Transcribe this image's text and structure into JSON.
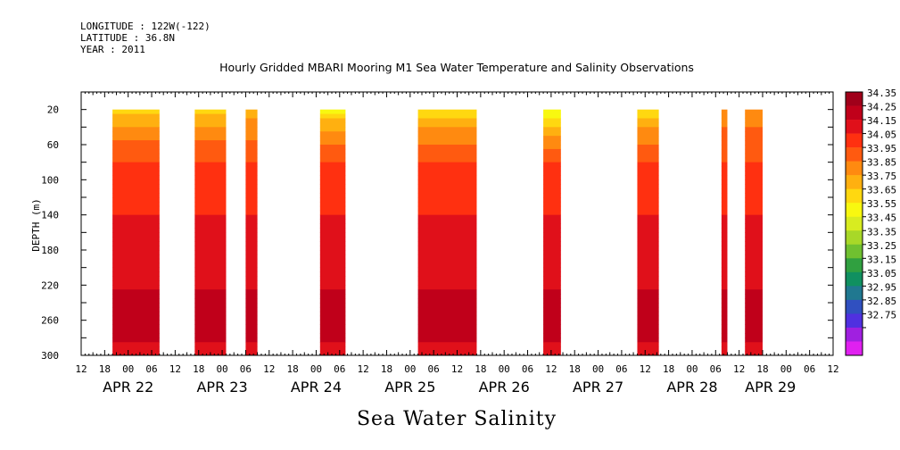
{
  "header": {
    "longitude": "LONGITUDE : 122W(-122)",
    "latitude": "LATITUDE : 36.8N",
    "year": "YEAR : 2011"
  },
  "chart_data": {
    "type": "heatmap",
    "title": "Hourly Gridded MBARI Mooring M1 Sea Water Temperature and Salinity Observations",
    "xlabel": "Sea Water Salinity",
    "ylabel": "DEPTH (m)",
    "x_hour_ticks": [
      "12",
      "18",
      "00",
      "06",
      "12",
      "18",
      "00",
      "06",
      "12",
      "18",
      "00",
      "06",
      "12",
      "18",
      "00",
      "06",
      "12",
      "18",
      "00",
      "06",
      "12",
      "18",
      "00",
      "06",
      "12",
      "18",
      "00",
      "06",
      "12",
      "18",
      "00",
      "06",
      "12"
    ],
    "x_day_labels": [
      {
        "label": "APR 22",
        "hours_from_start": 12
      },
      {
        "label": "APR 23",
        "hours_from_start": 36
      },
      {
        "label": "APR 24",
        "hours_from_start": 60
      },
      {
        "label": "APR 25",
        "hours_from_start": 84
      },
      {
        "label": "APR 26",
        "hours_from_start": 108
      },
      {
        "label": "APR 27",
        "hours_from_start": 132
      },
      {
        "label": "APR 28",
        "hours_from_start": 156
      },
      {
        "label": "APR 29",
        "hours_from_start": 176
      }
    ],
    "xlim_hours": [
      0,
      192
    ],
    "y_ticks": [
      20,
      60,
      100,
      140,
      180,
      220,
      260,
      300
    ],
    "ylim": [
      0,
      300
    ],
    "y_inverted": true,
    "colorbar_levels": [
      34.35,
      34.25,
      34.15,
      34.05,
      33.95,
      33.85,
      33.75,
      33.65,
      33.55,
      33.45,
      33.35,
      33.25,
      33.15,
      33.05,
      32.95,
      32.85,
      32.75
    ],
    "colorbar_colors": [
      "#a0001a",
      "#c0001a",
      "#e0101a",
      "#ff3010",
      "#ff5a10",
      "#ff8a10",
      "#ffb010",
      "#ffd810",
      "#f8f810",
      "#d8ec20",
      "#a8d828",
      "#70c030",
      "#30a040",
      "#109060",
      "#207890",
      "#3050c0",
      "#5030e0",
      "#a020e0",
      "#e020f0"
    ],
    "segments": [
      {
        "start": 8,
        "end": 20,
        "top_salinity": 33.7
      },
      {
        "start": 29,
        "end": 37,
        "top_salinity": 33.7
      },
      {
        "start": 42,
        "end": 45,
        "top_salinity": 33.75
      },
      {
        "start": 61,
        "end": 67.5,
        "top_salinity": 33.6
      },
      {
        "start": 86,
        "end": 101,
        "top_salinity": 33.65
      },
      {
        "start": 118,
        "end": 122.5,
        "top_salinity": 33.5
      },
      {
        "start": 142,
        "end": 147.5,
        "top_salinity": 33.65
      },
      {
        "start": 163.5,
        "end": 165,
        "top_salinity": 33.85
      },
      {
        "start": 169.5,
        "end": 174,
        "top_salinity": 33.85
      }
    ],
    "data_depth_range": [
      20,
      300
    ]
  }
}
